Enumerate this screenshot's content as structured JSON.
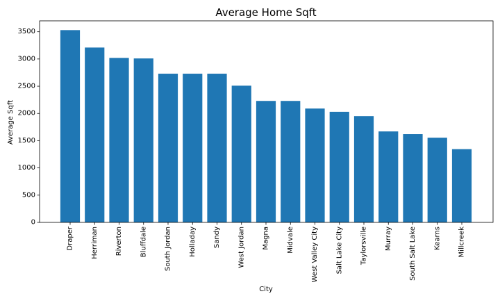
{
  "chart_data": {
    "type": "bar",
    "title": "Average Home Sqft",
    "xlabel": "City",
    "ylabel": "Average Sqft",
    "categories": [
      "Draper",
      "Herriman",
      "Riverton",
      "Bluffdale",
      "South Jordan",
      "Holladay",
      "Sandy",
      "West Jordan",
      "Magna",
      "Midvale",
      "West Valley City",
      "Salt Lake City",
      "Taylorsville",
      "Murray",
      "South Salt Lake",
      "Kearns",
      "Millcreek"
    ],
    "values": [
      3530,
      3210,
      3020,
      3010,
      2730,
      2730,
      2730,
      2510,
      2230,
      2230,
      2090,
      2030,
      1950,
      1670,
      1620,
      1555,
      1345
    ],
    "yticks": [
      0,
      500,
      1000,
      1500,
      2000,
      2500,
      3000,
      3500
    ],
    "ylim": [
      0,
      3700
    ],
    "grid": false,
    "bar_color": "#1f77b4"
  }
}
